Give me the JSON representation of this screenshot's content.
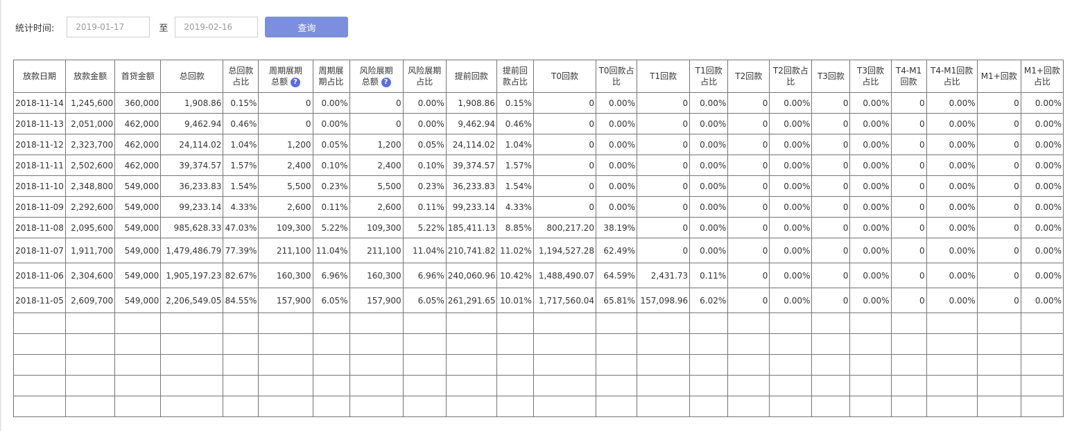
{
  "filter": {
    "label": "统计时间:",
    "start_date": "2019-01-17",
    "separator": "至",
    "end_date": "2019-02-16",
    "query_button": "查询"
  },
  "icons": {
    "help": "question-circle-icon",
    "help_glyph": "?"
  },
  "colors": {
    "button": "#7b8fde",
    "help_icon": "#5a6ee0"
  },
  "table": {
    "headers": [
      {
        "line1": "放款日期",
        "line2": "",
        "help": false
      },
      {
        "line1": "放款金额",
        "line2": "",
        "help": false
      },
      {
        "line1": "首贷金额",
        "line2": "",
        "help": false
      },
      {
        "line1": "总回款",
        "line2": "",
        "help": false
      },
      {
        "line1": "总回款",
        "line2": "占比",
        "help": false
      },
      {
        "line1": "周期展期",
        "line2": "总额",
        "help": true
      },
      {
        "line1": "周期展",
        "line2": "期占比",
        "help": false
      },
      {
        "line1": "风险展期",
        "line2": "总额",
        "help": true
      },
      {
        "line1": "风险展期",
        "line2": "占比",
        "help": false
      },
      {
        "line1": "提前回款",
        "line2": "",
        "help": false
      },
      {
        "line1": "提前回",
        "line2": "款占比",
        "help": false
      },
      {
        "line1": "T0回款",
        "line2": "",
        "help": false
      },
      {
        "line1": "T0回款占",
        "line2": "比",
        "help": false
      },
      {
        "line1": "T1回款",
        "line2": "",
        "help": false
      },
      {
        "line1": "T1回款",
        "line2": "占比",
        "help": false
      },
      {
        "line1": "T2回款",
        "line2": "",
        "help": false
      },
      {
        "line1": "T2回款占",
        "line2": "比",
        "help": false
      },
      {
        "line1": "T3回款",
        "line2": "",
        "help": false
      },
      {
        "line1": "T3回款",
        "line2": "占比",
        "help": false
      },
      {
        "line1": "T4-M1",
        "line2": "回款",
        "help": false
      },
      {
        "line1": "T4-M1回款",
        "line2": "占比",
        "help": false
      },
      {
        "line1": "M1+回款",
        "line2": "",
        "help": false
      },
      {
        "line1": "M1+回款",
        "line2": "占比",
        "help": false
      }
    ],
    "rows": [
      [
        "2018-11-14",
        "1,245,600",
        "360,000",
        "1,908.86",
        "0.15%",
        "0",
        "0.00%",
        "0",
        "0.00%",
        "1,908.86",
        "0.15%",
        "0",
        "0.00%",
        "0",
        "0.00%",
        "0",
        "0.00%",
        "0",
        "0.00%",
        "0",
        "0.00%",
        "0",
        "0.00%"
      ],
      [
        "2018-11-13",
        "2,051,000",
        "462,000",
        "9,462.94",
        "0.46%",
        "0",
        "0.00%",
        "0",
        "0.00%",
        "9,462.94",
        "0.46%",
        "0",
        "0.00%",
        "0",
        "0.00%",
        "0",
        "0.00%",
        "0",
        "0.00%",
        "0",
        "0.00%",
        "0",
        "0.00%"
      ],
      [
        "2018-11-12",
        "2,323,700",
        "462,000",
        "24,114.02",
        "1.04%",
        "1,200",
        "0.05%",
        "1,200",
        "0.05%",
        "24,114.02",
        "1.04%",
        "0",
        "0.00%",
        "0",
        "0.00%",
        "0",
        "0.00%",
        "0",
        "0.00%",
        "0",
        "0.00%",
        "0",
        "0.00%"
      ],
      [
        "2018-11-11",
        "2,502,600",
        "462,000",
        "39,374.57",
        "1.57%",
        "2,400",
        "0.10%",
        "2,400",
        "0.10%",
        "39,374.57",
        "1.57%",
        "0",
        "0.00%",
        "0",
        "0.00%",
        "0",
        "0.00%",
        "0",
        "0.00%",
        "0",
        "0.00%",
        "0",
        "0.00%"
      ],
      [
        "2018-11-10",
        "2,348,800",
        "549,000",
        "36,233.83",
        "1.54%",
        "5,500",
        "0.23%",
        "5,500",
        "0.23%",
        "36,233.83",
        "1.54%",
        "0",
        "0.00%",
        "0",
        "0.00%",
        "0",
        "0.00%",
        "0",
        "0.00%",
        "0",
        "0.00%",
        "0",
        "0.00%"
      ],
      [
        "2018-11-09",
        "2,292,600",
        "549,000",
        "99,233.14",
        "4.33%",
        "2,600",
        "0.11%",
        "2,600",
        "0.11%",
        "99,233.14",
        "4.33%",
        "0",
        "0.00%",
        "0",
        "0.00%",
        "0",
        "0.00%",
        "0",
        "0.00%",
        "0",
        "0.00%",
        "0",
        "0.00%"
      ],
      [
        "2018-11-08",
        "2,095,600",
        "549,000",
        "985,628.33",
        "47.03%",
        "109,300",
        "5.22%",
        "109,300",
        "5.22%",
        "185,411.13",
        "8.85%",
        "800,217.20",
        "38.19%",
        "0",
        "0.00%",
        "0",
        "0.00%",
        "0",
        "0.00%",
        "0",
        "0.00%",
        "0",
        "0.00%"
      ],
      [
        "2018-11-07",
        "1,911,700",
        "549,000",
        "1,479,486.79",
        "77.39%",
        "211,100",
        "11.04%",
        "211,100",
        "11.04%",
        "210,741.82",
        "11.02%",
        "1,194,527.28",
        "62.49%",
        "0",
        "0.00%",
        "0",
        "0.00%",
        "0",
        "0.00%",
        "0",
        "0.00%",
        "0",
        "0.00%"
      ],
      [
        "2018-11-06",
        "2,304,600",
        "549,000",
        "1,905,197.23",
        "82.67%",
        "160,300",
        "6.96%",
        "160,300",
        "6.96%",
        "240,060.96",
        "10.42%",
        "1,488,490.07",
        "64.59%",
        "2,431.73",
        "0.11%",
        "0",
        "0.00%",
        "0",
        "0.00%",
        "0",
        "0.00%",
        "0",
        "0.00%"
      ],
      [
        "2018-11-05",
        "2,609,700",
        "549,000",
        "2,206,549.05",
        "84.55%",
        "157,900",
        "6.05%",
        "157,900",
        "6.05%",
        "261,291.65",
        "10.01%",
        "1,717,560.04",
        "65.81%",
        "157,098.96",
        "6.02%",
        "0",
        "0.00%",
        "0",
        "0.00%",
        "0",
        "0.00%",
        "0",
        "0.00%"
      ]
    ],
    "empty_rows": 5
  }
}
